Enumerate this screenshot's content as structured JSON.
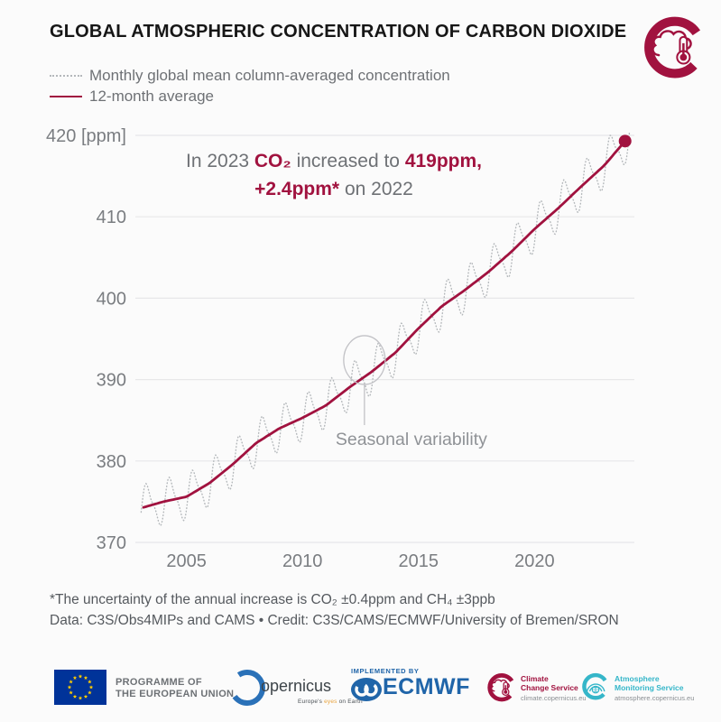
{
  "header": {
    "title": "GLOBAL ATMOSPHERIC CONCENTRATION OF CARBON DIOXIDE"
  },
  "legend": [
    {
      "label": "Monthly global mean column-averaged concentration",
      "style": "dotted",
      "color": "#b4b8bb"
    },
    {
      "label": "12-month average",
      "style": "solid",
      "color": "#a1123f"
    }
  ],
  "annotation": {
    "l1_pre": "In 2023 ",
    "l1_co2": "CO₂",
    "l1_mid": " increased to ",
    "l1_val": "419ppm,",
    "l2_val": "+2.4ppm*",
    "l2_post": " on 2022"
  },
  "footnotes": {
    "line1": "*The uncertainty of the annual increase is CO₂ ±0.4ppm and CH₄ ±3ppb",
    "line2": "Data: C3S/Obs4MIPs and CAMS • Credit: C3S/CAMS/ECMWF/University of Bremen/SRON"
  },
  "footer": {
    "eu": {
      "line1": "PROGRAMME OF",
      "line2": "THE EUROPEAN UNION"
    },
    "copernicus": {
      "name": "opernicus",
      "tagline_pre": "Europe's ",
      "tagline_mid": "eyes",
      "tagline_post": " on Earth"
    },
    "ecmwf": {
      "implemented_by": "IMPLEMENTED BY",
      "name": "ECMWF"
    },
    "c3s": {
      "line1": "Climate",
      "line2": "Change Service",
      "url": "climate.copernicus.eu"
    },
    "ams": {
      "line1": "Atmosphere",
      "line2": "Monitoring Service",
      "url": "atmosphere.copernicus.eu"
    }
  },
  "colors": {
    "crimson": "#a1123f",
    "dotted_gray": "#b4b8bb",
    "grid": "#e7e7e9",
    "axis_text": "#7a7d81",
    "callout": "#c2c2c6",
    "eu_blue": "#003399",
    "star_yellow": "#ffcc00",
    "ecmwf_blue": "#2065a9",
    "teal": "#35b6c9"
  },
  "chart_data": {
    "type": "line",
    "title": "GLOBAL ATMOSPHERIC CONCENTRATION OF CARBON DIOXIDE",
    "ylabel": "ppm",
    "y_ticks": [
      370,
      380,
      390,
      400,
      410,
      420
    ],
    "y_top_tick_label": "420 [ppm]",
    "x_ticks": [
      2005,
      2010,
      2015,
      2020
    ],
    "x_domain": [
      2002.8,
      2024.3
    ],
    "y_domain": [
      369,
      421.5
    ],
    "grid": "horizontal-only",
    "legend_position": "top-left",
    "series": [
      {
        "name": "Monthly global mean column-averaged concentration",
        "style": "dotted",
        "derived_from": "12-month average",
        "seasonal_amplitude_ppm": 2.5,
        "seasonal_phase": 0.07,
        "x_start": 2003.05,
        "x_end": 2024.1
      },
      {
        "name": "12-month average",
        "style": "solid",
        "points": [
          [
            2003.15,
            374.3
          ],
          [
            2004,
            375.0
          ],
          [
            2005,
            375.6
          ],
          [
            2006,
            377.3
          ],
          [
            2007,
            379.6
          ],
          [
            2008,
            382.2
          ],
          [
            2009,
            384.0
          ],
          [
            2010,
            385.3
          ],
          [
            2011,
            386.8
          ],
          [
            2012,
            389.0
          ],
          [
            2013,
            391.0
          ],
          [
            2014,
            393.3
          ],
          [
            2015,
            396.3
          ],
          [
            2016,
            399.0
          ],
          [
            2017,
            401.0
          ],
          [
            2018,
            403.2
          ],
          [
            2019,
            405.7
          ],
          [
            2020,
            408.5
          ],
          [
            2021,
            411.0
          ],
          [
            2022,
            413.7
          ],
          [
            2023,
            416.3
          ],
          [
            2023.9,
            419.3
          ]
        ]
      }
    ],
    "end_marker": {
      "x": 2023.9,
      "y": 419.3,
      "meaning": "419ppm in 2023"
    },
    "callout": {
      "x": 2012.67,
      "y": 392.4,
      "label": "Seasonal variability"
    }
  }
}
